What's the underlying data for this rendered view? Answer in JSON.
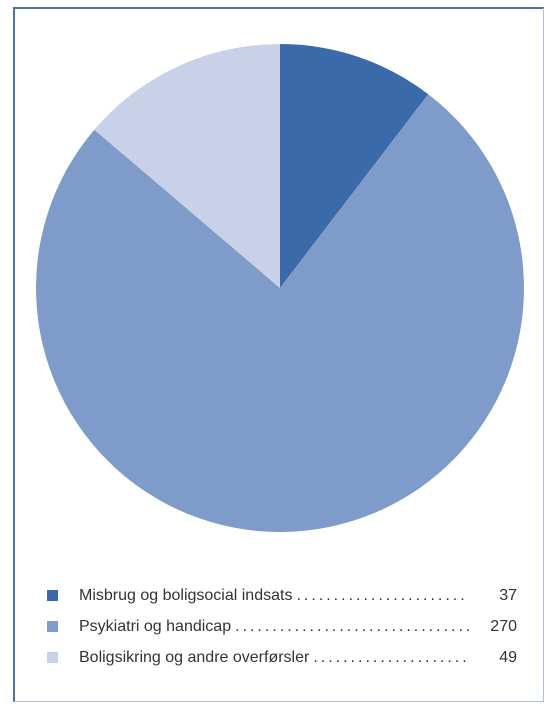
{
  "chart_data": {
    "type": "pie",
    "start_angle_deg": 0,
    "direction": "clockwise",
    "slices": [
      {
        "label": "Misbrug og boligsocial indsats",
        "value": 37,
        "value_label": "37",
        "color": "#3a6aa9"
      },
      {
        "label": "Psykiatri og handicap",
        "value": 270,
        "value_label": "270",
        "color": "#7f9bc9"
      },
      {
        "label": "Boligsikring og andre overførsler",
        "value": 49,
        "value_label": "49",
        "color": "#c9d1e9"
      }
    ]
  }
}
